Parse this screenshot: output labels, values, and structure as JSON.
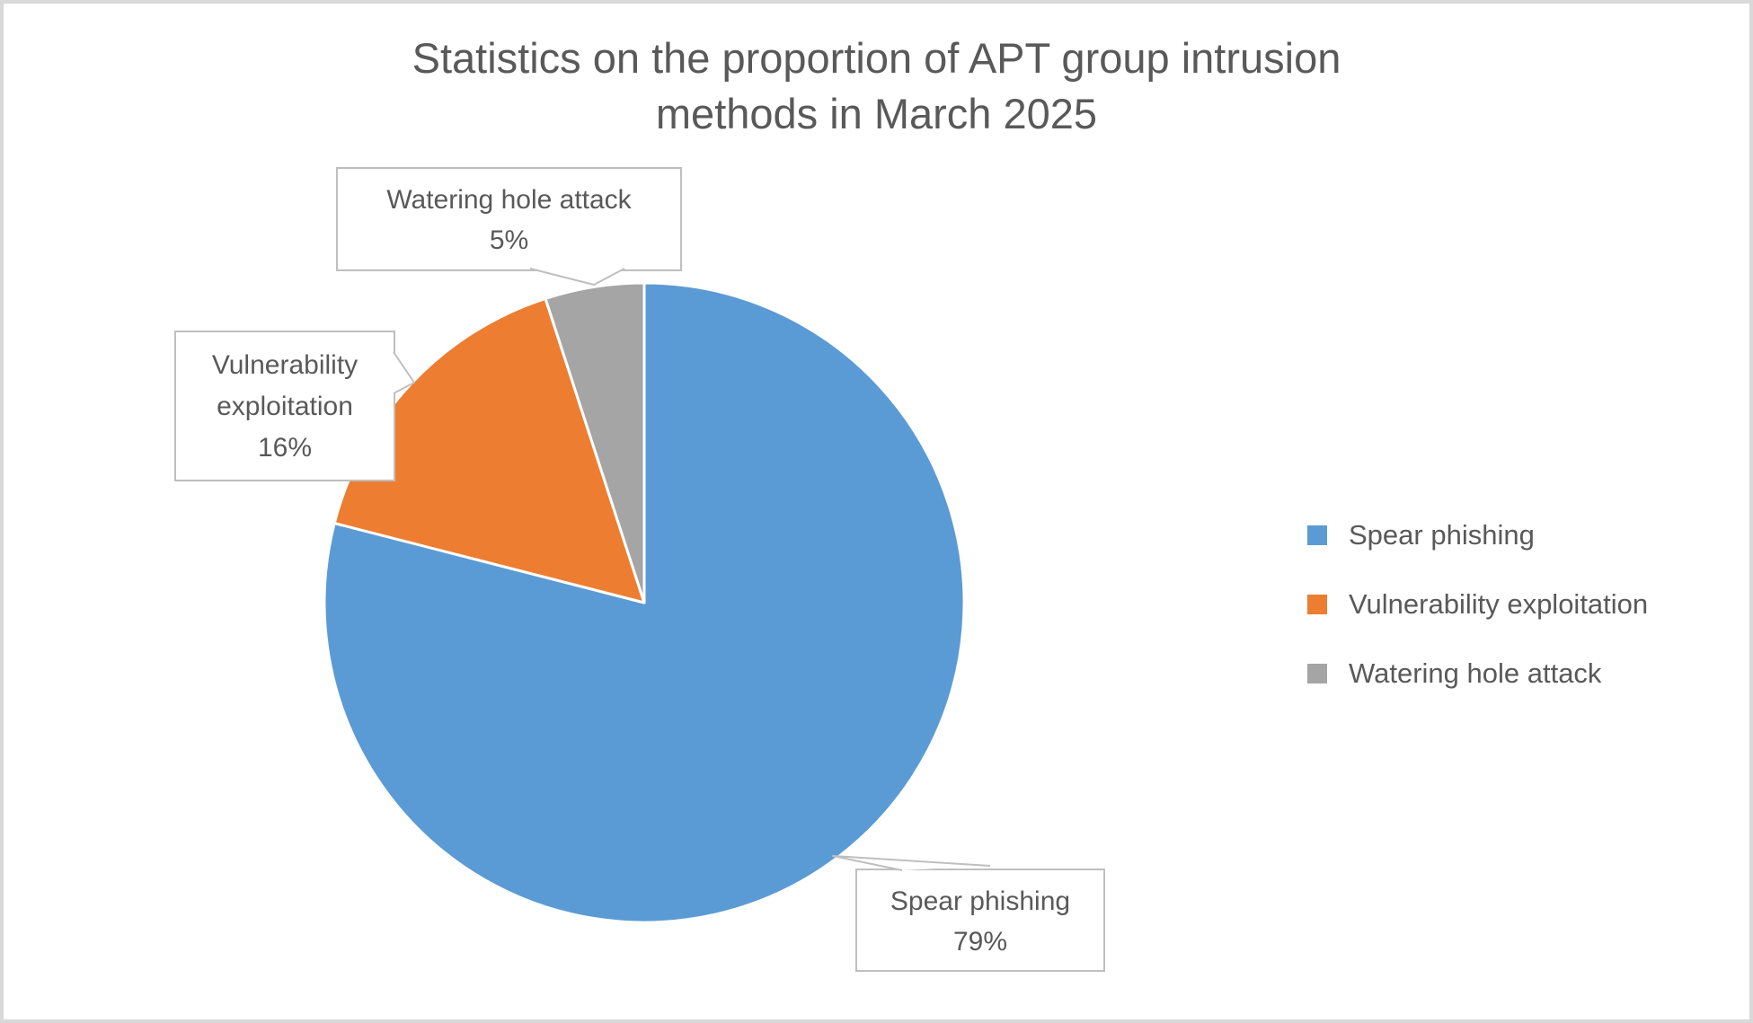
{
  "chart_data": {
    "type": "pie",
    "title": "Statistics on the proportion of APT group intrusion methods in March 2025",
    "title_lines": [
      "Statistics on the proportion of APT group intrusion",
      "methods in March 2025"
    ],
    "series": [
      {
        "name": "Spear phishing",
        "value_pct": 79,
        "color": "#5b9bd5"
      },
      {
        "name": "Vulnerability exploitation",
        "value_pct": 16,
        "color": "#ed7d31"
      },
      {
        "name": "Watering hole attack",
        "value_pct": 5,
        "color": "#a5a5a5"
      }
    ],
    "start_angle_deg": 0,
    "direction": "clockwise",
    "legend_position": "right",
    "data_label_style": "callout with category name and percentage"
  },
  "callouts": {
    "watering": {
      "lines": [
        "Watering hole attack",
        "5%"
      ]
    },
    "vulnerability": {
      "lines": [
        "Vulnerability",
        "exploitation",
        "16%"
      ]
    },
    "spear": {
      "lines": [
        "Spear phishing",
        "79%"
      ]
    }
  },
  "legend": {
    "items": [
      {
        "label": "Spear phishing",
        "color": "#5b9bd5"
      },
      {
        "label": "Vulnerability exploitation",
        "color": "#ed7d31"
      },
      {
        "label": "Watering hole attack",
        "color": "#a5a5a5"
      }
    ]
  },
  "colors": {
    "title_text": "#595959",
    "label_text": "#595959",
    "callout_border": "#bfbfbf",
    "slice_separator": "#ffffff",
    "frame_border": "#d9d9d9",
    "background": "#ffffff"
  }
}
